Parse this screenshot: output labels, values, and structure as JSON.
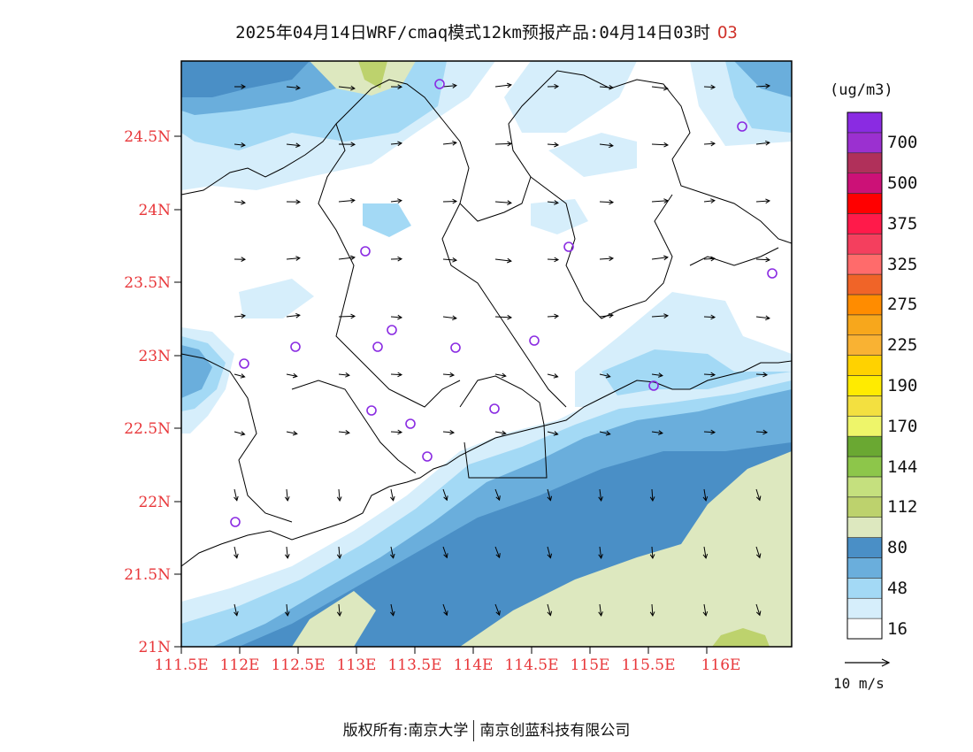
{
  "title": {
    "text": "2025年04月14日WRF/cmaq模式12km预报产品:04月14日03时",
    "species": "O3"
  },
  "axes": {
    "x_labels": [
      "111.5E",
      "112E",
      "112.5E",
      "113E",
      "113.5E",
      "114E",
      "114.5E",
      "115E",
      "115.5E",
      "116E"
    ],
    "y_labels": [
      "24.5N",
      "24N",
      "23.5N",
      "23N",
      "22.5N",
      "22N",
      "21.5N",
      "21N"
    ]
  },
  "legend": {
    "units": "(ug/m3)",
    "bins": [
      {
        "color": "#ffffff",
        "label": "16"
      },
      {
        "color": "#d6eefb",
        "label": ""
      },
      {
        "color": "#a3d9f5",
        "label": "48"
      },
      {
        "color": "#6aaedc",
        "label": ""
      },
      {
        "color": "#4a8fc6",
        "label": "80"
      },
      {
        "color": "#dde8bf",
        "label": ""
      },
      {
        "color": "#bdd26d",
        "label": "112"
      },
      {
        "color": "#c5e07e",
        "label": ""
      },
      {
        "color": "#8dc64a",
        "label": "144"
      },
      {
        "color": "#6aa832",
        "label": ""
      },
      {
        "color": "#eef56a",
        "label": "170"
      },
      {
        "color": "#f3e040",
        "label": ""
      },
      {
        "color": "#ffeb00",
        "label": "190"
      },
      {
        "color": "#ffd200",
        "label": ""
      },
      {
        "color": "#f9b233",
        "label": "225"
      },
      {
        "color": "#f7a71c",
        "label": ""
      },
      {
        "color": "#ff8c00",
        "label": "275"
      },
      {
        "color": "#f06428",
        "label": ""
      },
      {
        "color": "#ff6b6b",
        "label": "325"
      },
      {
        "color": "#f43f5e",
        "label": ""
      },
      {
        "color": "#ff1a4a",
        "label": "375"
      },
      {
        "color": "#ff0000",
        "label": ""
      },
      {
        "color": "#cc1177",
        "label": "500"
      },
      {
        "color": "#b0305a",
        "label": ""
      },
      {
        "color": "#9b30d0",
        "label": "700"
      },
      {
        "color": "#8a2be2",
        "label": ""
      }
    ]
  },
  "wind_reference": {
    "label": "10  m/s"
  },
  "footer": {
    "left": "版权所有:南京大学",
    "right": "南京创蓝科技有限公司"
  },
  "colors": {
    "tick_labels": "#e8373a",
    "species": "#d0342c",
    "station_marker": "#8a2be2"
  }
}
